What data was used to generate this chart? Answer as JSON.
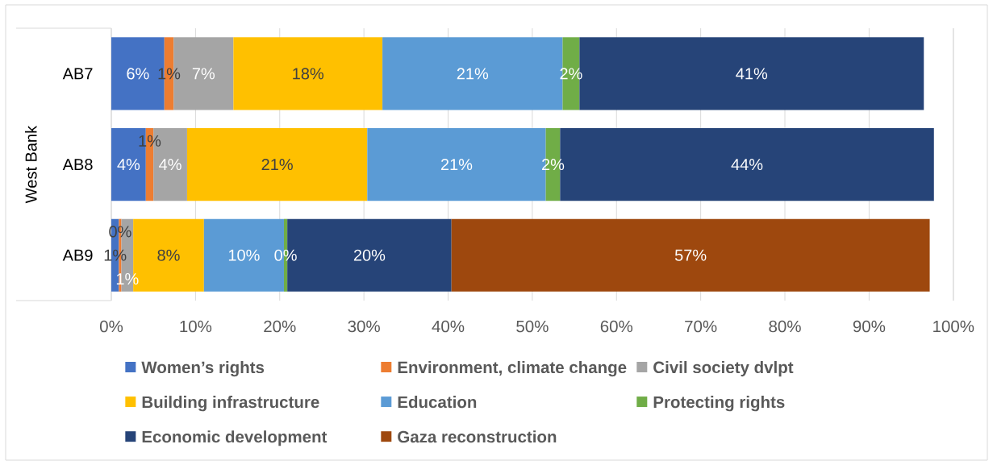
{
  "chart_data": {
    "type": "bar",
    "orientation": "horizontal",
    "stacked": true,
    "ylabel": "West Bank",
    "categories": [
      "AB7",
      "AB8",
      "AB9"
    ],
    "series": [
      {
        "name": "Women’s rights",
        "color": "#4472c4",
        "values": [
          6.3,
          4.1,
          0.9
        ],
        "value_labels": [
          "6%",
          "4%",
          "1%"
        ]
      },
      {
        "name": "Environment, climate change",
        "color": "#ed7d31",
        "values": [
          1.1,
          0.9,
          0.3
        ],
        "value_labels": [
          "1%",
          "1%",
          "0%"
        ]
      },
      {
        "name": "Civil society dvlpt",
        "color": "#a5a5a5",
        "values": [
          7.1,
          4.0,
          1.4
        ],
        "value_labels": [
          "7%",
          "4%",
          "1%"
        ]
      },
      {
        "name": "Building infrastructure",
        "color": "#ffc000",
        "values": [
          17.7,
          21.4,
          8.4
        ],
        "value_labels": [
          "18%",
          "21%",
          "8%"
        ]
      },
      {
        "name": "Education",
        "color": "#5b9bd5",
        "values": [
          21.4,
          21.2,
          9.5
        ],
        "value_labels": [
          "21%",
          "21%",
          "10%"
        ]
      },
      {
        "name": "Protecting rights",
        "color": "#70ad47",
        "values": [
          2.0,
          1.7,
          0.4
        ],
        "value_labels": [
          "2%",
          "2%",
          "0%"
        ]
      },
      {
        "name": "Economic development",
        "color": "#264478",
        "values": [
          40.9,
          44.4,
          19.5
        ],
        "value_labels": [
          "41%",
          "44%",
          "20%"
        ]
      },
      {
        "name": "Gaza reconstruction",
        "color": "#9e480e",
        "values": [
          null,
          null,
          56.8
        ],
        "value_labels": [
          null,
          null,
          "57%"
        ]
      }
    ],
    "xlim": [
      0,
      100
    ],
    "xticks": [
      {
        "value": 0,
        "label": "0%"
      },
      {
        "value": 10,
        "label": "10%"
      },
      {
        "value": 20,
        "label": "20%"
      },
      {
        "value": 30,
        "label": "30%"
      },
      {
        "value": 40,
        "label": "40%"
      },
      {
        "value": 50,
        "label": "50%"
      },
      {
        "value": 60,
        "label": "60%"
      },
      {
        "value": 70,
        "label": "70%"
      },
      {
        "value": 80,
        "label": "80%"
      },
      {
        "value": 90,
        "label": "90%"
      },
      {
        "value": 100,
        "label": "100%"
      }
    ],
    "grid": "x",
    "legend": "bottom"
  }
}
